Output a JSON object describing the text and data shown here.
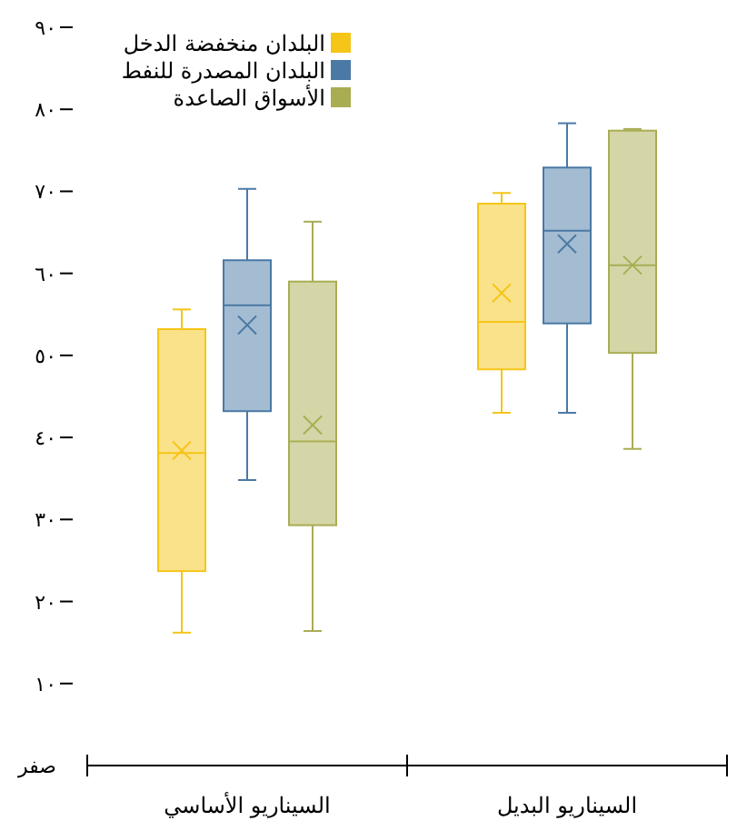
{
  "chart_data": {
    "type": "box",
    "categories": [
      "السيناريو الأساسي",
      "السيناريو البديل"
    ],
    "ylim": [
      0,
      90
    ],
    "yticks": [
      {
        "value": 0,
        "label": "صفر"
      },
      {
        "value": 10,
        "label": "١٠"
      },
      {
        "value": 20,
        "label": "٢٠"
      },
      {
        "value": 30,
        "label": "٣٠"
      },
      {
        "value": 40,
        "label": "٤٠"
      },
      {
        "value": 50,
        "label": "٥٠"
      },
      {
        "value": 60,
        "label": "٦٠"
      },
      {
        "value": 70,
        "label": "٧٠"
      },
      {
        "value": 80,
        "label": "٨٠"
      },
      {
        "value": 90,
        "label": "٩٠"
      }
    ],
    "legend": "top left",
    "grid": false,
    "series": [
      {
        "name": "البلدان منخفضة الدخل",
        "color": "#f5c518",
        "boxes": [
          {
            "low": 16.2,
            "q1": 23.7,
            "median": 38.1,
            "q3": 53.2,
            "high": 55.6,
            "mean": 38.4
          },
          {
            "low": 43.0,
            "q1": 48.3,
            "median": 54.1,
            "q3": 68.5,
            "high": 69.8,
            "mean": 57.6
          }
        ]
      },
      {
        "name": "البلدان المصدرة للنفط",
        "color": "#4a79a5",
        "boxes": [
          {
            "low": 34.8,
            "q1": 43.2,
            "median": 56.1,
            "q3": 61.6,
            "high": 70.3,
            "mean": 53.7
          },
          {
            "low": 43.0,
            "q1": 53.9,
            "median": 65.2,
            "q3": 72.9,
            "high": 78.3,
            "mean": 63.6
          }
        ]
      },
      {
        "name": "الأسواق الصاعدة",
        "color": "#a9ad52",
        "boxes": [
          {
            "low": 16.4,
            "q1": 29.3,
            "median": 39.5,
            "q3": 59.0,
            "high": 66.3,
            "mean": 41.5
          },
          {
            "low": 38.6,
            "q1": 50.3,
            "median": 61.0,
            "q3": 77.4,
            "high": 77.6,
            "mean": 61.0
          }
        ]
      }
    ]
  }
}
